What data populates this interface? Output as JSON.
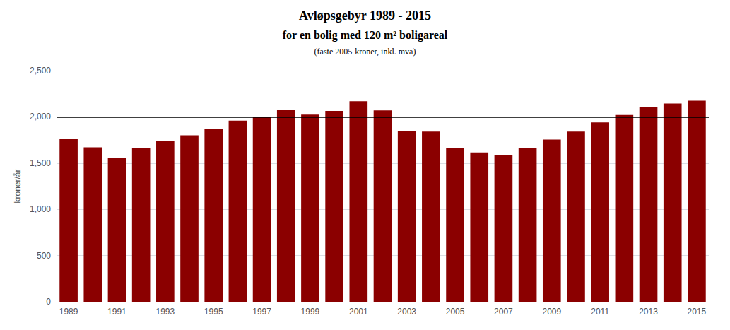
{
  "chart_data": {
    "type": "bar",
    "title": "Avløpsgebyr 1989 - 2015",
    "subtitle": [
      "for en bolig med 120 m² boligareal",
      "(faste 2005-kroner, inkl. mva)"
    ],
    "ylabel": "kroner/år",
    "categories": [
      "1989",
      null,
      "1991",
      null,
      "1993",
      null,
      "1995",
      null,
      "1997",
      null,
      "1999",
      null,
      "2001",
      null,
      "2003",
      null,
      "2005",
      null,
      "2007",
      null,
      "2009",
      null,
      "2011",
      null,
      "2013",
      null,
      "2015"
    ],
    "values": [
      1760,
      1670,
      1560,
      1665,
      1740,
      1800,
      1870,
      1960,
      2000,
      2080,
      2025,
      2065,
      2170,
      2070,
      1850,
      1840,
      1660,
      1615,
      1590,
      1665,
      1755,
      1840,
      1940,
      2020,
      2110,
      2145,
      2175
    ],
    "color": "#8B0000",
    "reference_line": 2000,
    "ylim": [
      0,
      2500
    ],
    "yticks": [
      0,
      500,
      1000,
      1500,
      2000,
      2500
    ],
    "grid": true
  }
}
